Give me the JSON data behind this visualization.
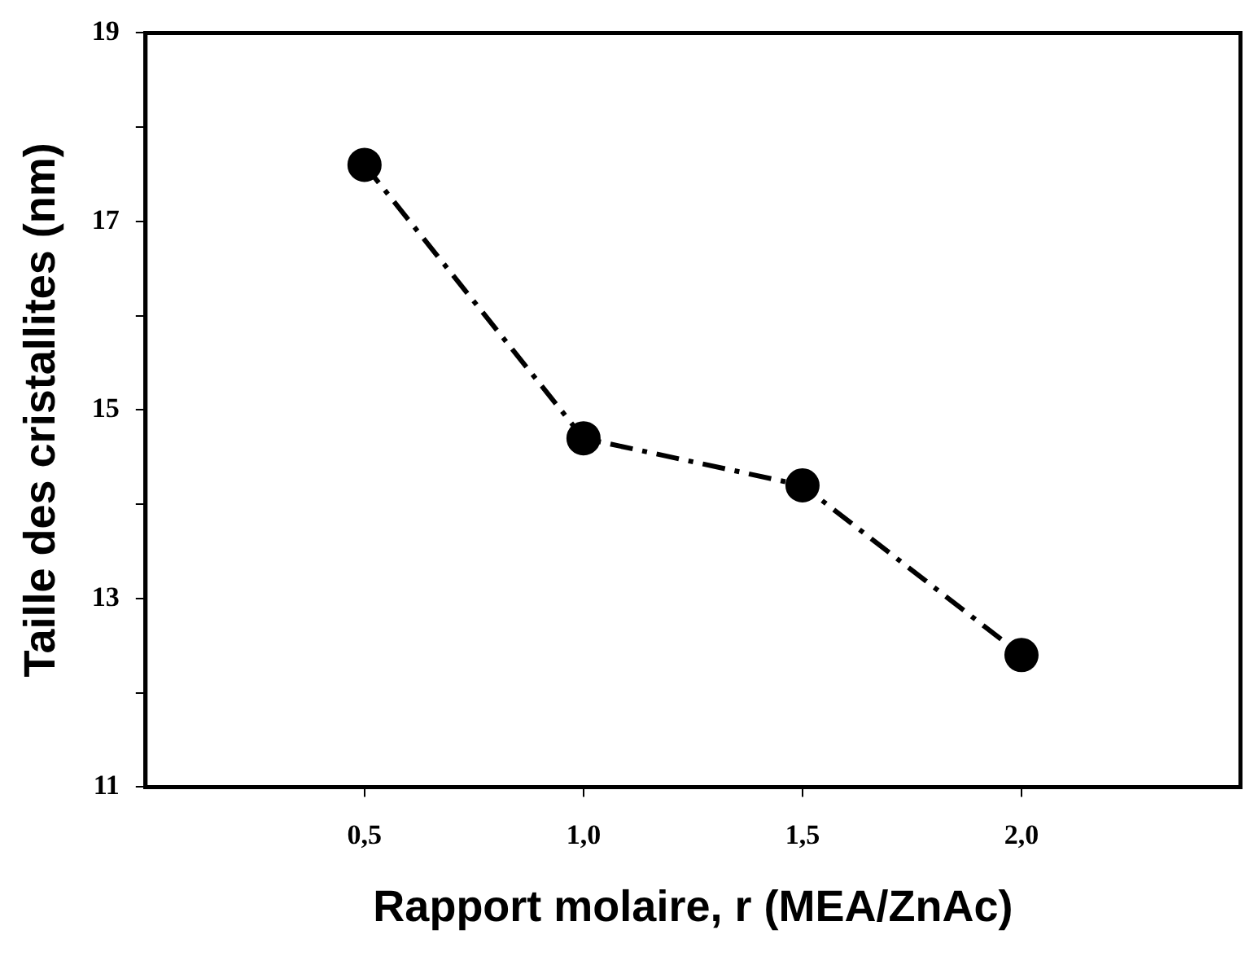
{
  "chart_data": {
    "type": "line",
    "xlabel": "Rapport molaire, r (MEA/ZnAc)",
    "ylabel": "Taille des cristallites (nm)",
    "x": [
      0.5,
      1.0,
      1.5,
      2.0
    ],
    "series": [
      {
        "color": "#000000",
        "values": [
          17.6,
          14.7,
          14.2,
          12.4
        ]
      }
    ],
    "xlim": [
      0,
      2.5
    ],
    "xticks": [
      {
        "value": 0.5,
        "label": "0,5"
      },
      {
        "value": 1.0,
        "label": "1,0"
      },
      {
        "value": 1.5,
        "label": "1,5"
      },
      {
        "value": 2.0,
        "label": "2,0"
      }
    ],
    "ylim": [
      11,
      19
    ],
    "yticks": [
      11,
      {
        "value": 12,
        "label": null
      },
      13,
      {
        "value": 14,
        "label": null
      },
      15,
      {
        "value": 16,
        "label": null
      },
      17,
      {
        "value": 18,
        "label": null
      },
      19
    ],
    "grid": false,
    "legend": false,
    "marker": "circle",
    "line_style": "dashed"
  }
}
